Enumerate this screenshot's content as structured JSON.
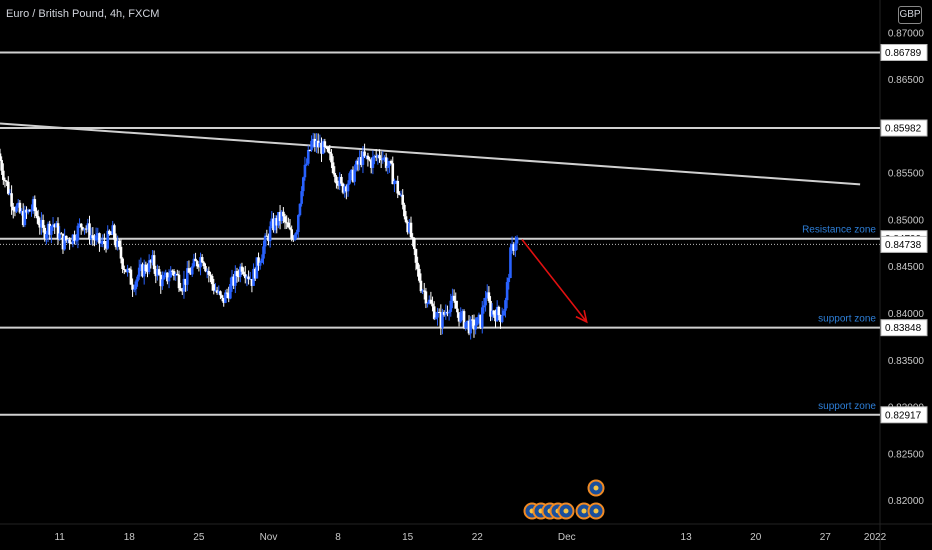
{
  "header": {
    "title": "Euro / British Pound, 4h, FXCM",
    "currency": "GBP"
  },
  "colors": {
    "up": "#2962ff",
    "down": "#ffffff",
    "line": "#d0d0d0",
    "arrow": "#e01010",
    "annotation": "#2e7fd8"
  },
  "chart_data": {
    "type": "candlestick",
    "title": "Euro / British Pound, 4h, FXCM",
    "ylim": [
      0.8175,
      0.8735
    ],
    "y_ticks": [
      "0.87000",
      "0.86500",
      "0.85500",
      "0.85000",
      "0.84500",
      "0.84000",
      "0.83500",
      "0.83000",
      "0.82500",
      "0.82000"
    ],
    "x_ticks": [
      "11",
      "18",
      "25",
      "Nov",
      "8",
      "15",
      "22",
      "Dec",
      "13",
      "20",
      "27",
      "2022"
    ],
    "x_tick_days": [
      11,
      18,
      25,
      32,
      39,
      46,
      53,
      62,
      74,
      81,
      88,
      93
    ],
    "day_range": [
      5,
      93.5
    ],
    "price_levels": [
      {
        "value": 0.86789,
        "label": "0.86789"
      },
      {
        "value": 0.85982,
        "label": "0.85982"
      },
      {
        "value": 0.84799,
        "label": "0.84799",
        "annotation": "Resistance zone"
      },
      {
        "value": 0.84738,
        "label": "0.84738",
        "dotted": true
      },
      {
        "value": 0.83848,
        "label": "0.83848",
        "annotation": "support zone"
      },
      {
        "value": 0.82917,
        "label": "0.82917",
        "annotation": "support zone"
      }
    ],
    "trendline": {
      "start": [
        5,
        0.8603
      ],
      "end": [
        91.5,
        0.8538
      ]
    },
    "arrow": {
      "start": [
        57.5,
        0.8479
      ],
      "end": [
        64,
        0.8391
      ]
    },
    "path": [
      [
        5,
        0.8571
      ],
      [
        5.7,
        0.8542
      ],
      [
        6.5,
        0.8517
      ],
      [
        7.5,
        0.8502
      ],
      [
        8.5,
        0.8514
      ],
      [
        9.5,
        0.8487
      ],
      [
        10.5,
        0.8496
      ],
      [
        11.5,
        0.8476
      ],
      [
        12.5,
        0.8482
      ],
      [
        13.5,
        0.8497
      ],
      [
        14.5,
        0.8481
      ],
      [
        15.5,
        0.8473
      ],
      [
        16.5,
        0.8486
      ],
      [
        17.5,
        0.8455
      ],
      [
        18.5,
        0.8432
      ],
      [
        19.5,
        0.8447
      ],
      [
        20.5,
        0.8454
      ],
      [
        21.5,
        0.8432
      ],
      [
        22.5,
        0.8446
      ],
      [
        23.5,
        0.8431
      ],
      [
        24.5,
        0.8448
      ],
      [
        25.5,
        0.8462
      ],
      [
        26.5,
        0.8432
      ],
      [
        27.5,
        0.8412
      ],
      [
        28.5,
        0.8431
      ],
      [
        29.5,
        0.8452
      ],
      [
        30.5,
        0.8436
      ],
      [
        31.5,
        0.8466
      ],
      [
        32.5,
        0.8493
      ],
      [
        33.5,
        0.8504
      ],
      [
        34.5,
        0.8481
      ],
      [
        35,
        0.8493
      ],
      [
        35.5,
        0.8538
      ],
      [
        36.5,
        0.8582
      ],
      [
        37.5,
        0.8578
      ],
      [
        38.5,
        0.8562
      ],
      [
        39.5,
        0.8534
      ],
      [
        40.5,
        0.8545
      ],
      [
        41.5,
        0.8566
      ],
      [
        42.5,
        0.8562
      ],
      [
        43.5,
        0.8571
      ],
      [
        44.5,
        0.8552
      ],
      [
        45.5,
        0.8522
      ],
      [
        46.5,
        0.8482
      ],
      [
        47,
        0.8451
      ],
      [
        47.5,
        0.8431
      ],
      [
        48.5,
        0.8408
      ],
      [
        49.5,
        0.8392
      ],
      [
        50.5,
        0.8414
      ],
      [
        51.5,
        0.8396
      ],
      [
        52.5,
        0.8385
      ],
      [
        53.5,
        0.8392
      ],
      [
        54,
        0.8421
      ],
      [
        54.5,
        0.8403
      ],
      [
        55.5,
        0.8398
      ],
      [
        56,
        0.8411
      ],
      [
        56.5,
        0.8462
      ],
      [
        57,
        0.8479
      ]
    ]
  }
}
